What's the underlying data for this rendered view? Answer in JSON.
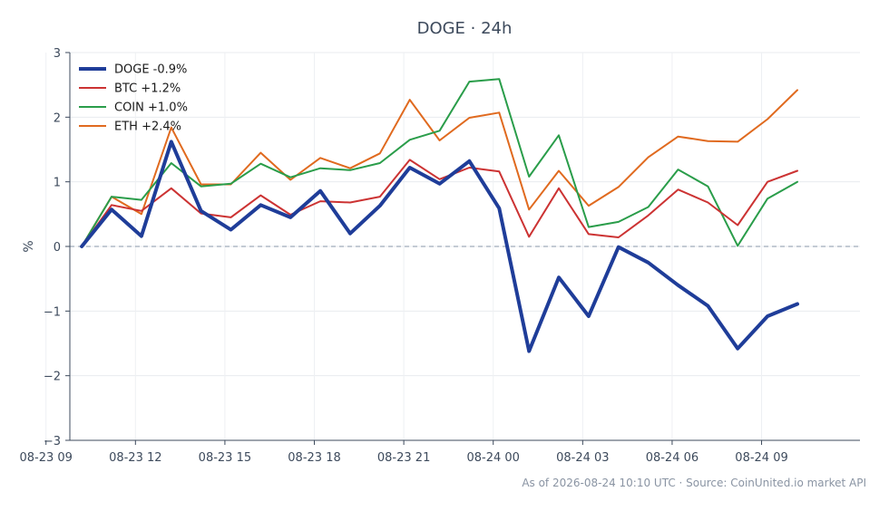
{
  "chart_data": {
    "type": "line",
    "title": "DOGE · 24h",
    "ylabel": "%",
    "xlabel": "",
    "ylim": [
      -3,
      3
    ],
    "yticks": [
      -3,
      -2,
      -1,
      0,
      1,
      2,
      3
    ],
    "ytick_labels": [
      "−3",
      "−2",
      "−1",
      "0",
      "1",
      "2",
      "3"
    ],
    "x_hours": [
      10.2,
      11.2,
      12.2,
      13.2,
      14.2,
      15.2,
      16.2,
      17.2,
      18.2,
      19.2,
      20.2,
      21.2,
      22.2,
      23.2,
      24.2,
      25.2,
      26.2,
      27.2,
      28.2,
      29.2,
      30.2,
      31.2,
      32.2,
      33.2,
      34.2,
      35.2
    ],
    "xlim_hours": [
      9.8,
      36.3
    ],
    "xticks_hours": [
      9,
      12,
      15,
      18,
      21,
      24,
      27,
      30,
      33
    ],
    "xtick_labels": [
      "08-23 09",
      "08-23 12",
      "08-23 15",
      "08-23 18",
      "08-23 21",
      "08-24 00",
      "08-24 03",
      "08-24 06",
      "08-24 09"
    ],
    "grid": true,
    "zero_line": true,
    "legend_position": "top-left",
    "series": [
      {
        "name": "DOGE -0.9%",
        "color": "#1f3d99",
        "width": 4,
        "values": [
          0.0,
          0.57,
          0.16,
          1.62,
          0.55,
          0.26,
          0.64,
          0.45,
          0.86,
          0.2,
          0.63,
          1.22,
          0.97,
          1.32,
          0.59,
          -1.62,
          -0.48,
          -1.08,
          -0.01,
          -0.25,
          -0.6,
          -0.92,
          -1.58,
          -1.08,
          -0.89,
          null
        ]
      },
      {
        "name": "BTC +1.2%",
        "color": "#cc3333",
        "width": 2,
        "values": [
          0.0,
          0.64,
          0.55,
          0.9,
          0.51,
          0.45,
          0.79,
          0.49,
          0.7,
          0.68,
          0.77,
          1.34,
          1.04,
          1.22,
          1.16,
          0.15,
          0.9,
          0.19,
          0.14,
          0.48,
          0.88,
          0.68,
          0.33,
          1.0,
          1.17,
          null
        ]
      },
      {
        "name": "COIN +1.0%",
        "color": "#2a9d4a",
        "width": 2,
        "values": [
          0.0,
          0.77,
          0.72,
          1.29,
          0.93,
          0.97,
          1.28,
          1.07,
          1.21,
          1.18,
          1.29,
          1.65,
          1.79,
          2.55,
          2.59,
          1.08,
          1.72,
          0.3,
          0.38,
          0.61,
          1.19,
          0.93,
          0.01,
          0.74,
          1.0,
          null
        ]
      },
      {
        "name": "ETH +2.4%",
        "color": "#e06a1f",
        "width": 2,
        "values": [
          0.0,
          0.77,
          0.5,
          1.84,
          0.96,
          0.96,
          1.45,
          1.03,
          1.37,
          1.21,
          1.44,
          2.27,
          1.64,
          1.99,
          2.07,
          0.57,
          1.17,
          0.63,
          0.92,
          1.38,
          1.7,
          1.63,
          1.62,
          1.97,
          2.42,
          null
        ]
      }
    ]
  },
  "footer": "As of 2026-08-24 10:10 UTC · Source: CoinUnited.io market API"
}
